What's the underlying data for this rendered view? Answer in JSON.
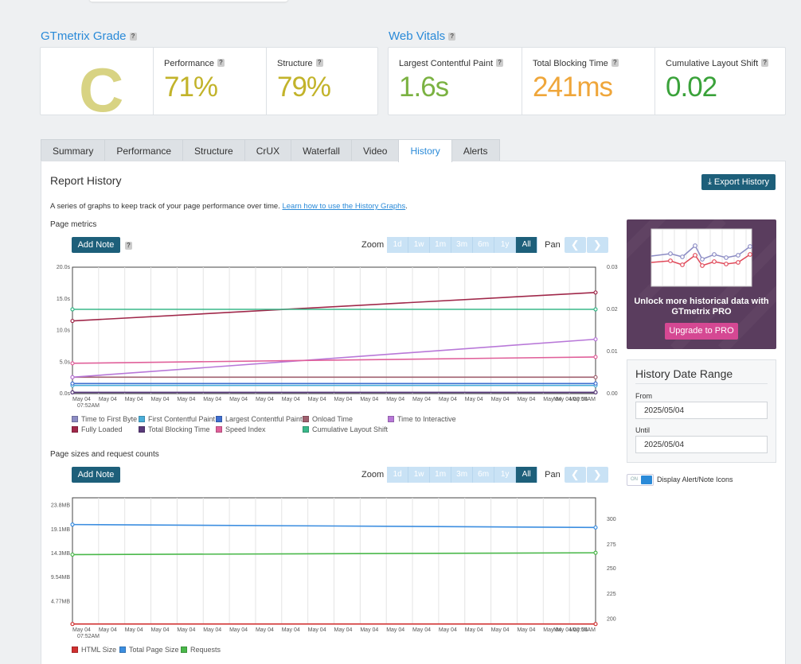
{
  "grade": {
    "title": "GTmetrix Grade",
    "letter": "C",
    "performance_label": "Performance",
    "performance_value": "71%",
    "structure_label": "Structure",
    "structure_value": "79%"
  },
  "vitals": {
    "title": "Web Vitals",
    "lcp_label": "Largest Contentful Paint",
    "lcp_value": "1.6s",
    "tbt_label": "Total Blocking Time",
    "tbt_value": "241ms",
    "cls_label": "Cumulative Layout Shift",
    "cls_value": "0.02"
  },
  "colors": {
    "grade": "#d8d383",
    "performance": "#c2b32a",
    "structure": "#c2b32a",
    "lcp": "#7bb242",
    "tbt": "#efa63a",
    "cls": "#3aa23a",
    "accent": "#2a8ad8",
    "dark_button": "#1d5f7a"
  },
  "tabs": [
    "Summary",
    "Performance",
    "Structure",
    "CrUX",
    "Waterfall",
    "Video",
    "History",
    "Alerts"
  ],
  "active_tab": "History",
  "history": {
    "title": "Report History",
    "export_label": "Export History",
    "description": "A series of graphs to keep track of your page performance over time.",
    "learn_link": "Learn how to use the History Graphs",
    "period": "."
  },
  "page_metrics": {
    "title": "Page metrics",
    "add_note": "Add Note",
    "zoom_label": "Zoom",
    "zoom_options": [
      "1d",
      "1w",
      "1m",
      "3m",
      "6m",
      "1y",
      "All"
    ],
    "zoom_selected": "All",
    "pan_label": "Pan"
  },
  "page_sizes": {
    "title": "Page sizes and request counts",
    "add_note": "Add Note",
    "zoom_label": "Zoom",
    "zoom_options": [
      "1d",
      "1w",
      "1m",
      "3m",
      "6m",
      "1y",
      "All"
    ],
    "zoom_selected": "All",
    "pan_label": "Pan"
  },
  "chart_data": [
    {
      "type": "line",
      "title": "Page metrics",
      "x": [
        "May 04 07:52AM",
        "May 04 07:55AM"
      ],
      "x_tick_first": "May 04",
      "x_tick_first_time": "07:52AM",
      "x_tick_last": "May 04 07:55AM",
      "y_left_ticks": [
        "20.0s",
        "15.0s",
        "10.0s",
        "5.0s",
        "0.0s"
      ],
      "y_right_ticks": [
        "0.03",
        "0.02",
        "0.01",
        "0.00"
      ],
      "ylim_left": [
        0,
        20
      ],
      "ylim_right": [
        0,
        0.03
      ],
      "series": [
        {
          "name": "Time to First Byte",
          "color": "#8c8cc4",
          "axis": "left",
          "values": [
            0.2,
            0.2
          ]
        },
        {
          "name": "First Contentful Paint",
          "color": "#4aaed9",
          "axis": "left",
          "values": [
            1.3,
            1.3
          ]
        },
        {
          "name": "Largest Contentful Paint",
          "color": "#3f6fd0",
          "axis": "left",
          "values": [
            1.6,
            1.6
          ]
        },
        {
          "name": "Onload Time",
          "color": "#a0606f",
          "axis": "left",
          "values": [
            2.6,
            2.6
          ]
        },
        {
          "name": "Time to Interactive",
          "color": "#b878d8",
          "axis": "left",
          "values": [
            2.6,
            8.6
          ]
        },
        {
          "name": "Fully Loaded",
          "color": "#a0284a",
          "axis": "left",
          "values": [
            11.5,
            16.0
          ]
        },
        {
          "name": "Total Blocking Time",
          "color": "#5a3a7a",
          "axis": "left",
          "values": [
            0.2,
            0.2
          ]
        },
        {
          "name": "Speed Index",
          "color": "#e0609a",
          "axis": "left",
          "values": [
            4.8,
            5.8
          ]
        },
        {
          "name": "Cumulative Layout Shift",
          "color": "#3ab88a",
          "axis": "right",
          "values": [
            0.02,
            0.02
          ]
        }
      ]
    },
    {
      "type": "line",
      "title": "Page sizes and request counts",
      "x": [
        "May 04 07:52AM",
        "May 04 07:55AM"
      ],
      "x_tick_first": "May 04",
      "x_tick_first_time": "07:52AM",
      "x_tick_last": "May 04 07:55AM",
      "y_left_ticks": [
        "23.8MB",
        "19.1MB",
        "14.3MB",
        "9.54MB",
        "4.77MB"
      ],
      "y_right_ticks": [
        "300",
        "275",
        "250",
        "225",
        "200"
      ],
      "ylim_left": [
        0,
        26
      ],
      "ylim_right": [
        180,
        318
      ],
      "series": [
        {
          "name": "HTML Size",
          "color": "#d03030",
          "axis": "left",
          "values": [
            0.05,
            0.05
          ]
        },
        {
          "name": "Total Page Size",
          "color": "#3c8ee0",
          "axis": "left",
          "values": [
            20.5,
            19.9
          ]
        },
        {
          "name": "Requests",
          "color": "#4ab84a",
          "axis": "right",
          "values": [
            256,
            258
          ]
        }
      ]
    }
  ],
  "promo": {
    "text": "Unlock more historical data with GTmetrix PRO",
    "button": "Upgrade to PRO"
  },
  "date_range": {
    "title": "History Date Range",
    "from_label": "From",
    "from_value": "2025/05/04",
    "until_label": "Until",
    "until_value": "2025/05/04"
  },
  "toggle": {
    "state": "ON",
    "label": "Display Alert/Note Icons"
  }
}
